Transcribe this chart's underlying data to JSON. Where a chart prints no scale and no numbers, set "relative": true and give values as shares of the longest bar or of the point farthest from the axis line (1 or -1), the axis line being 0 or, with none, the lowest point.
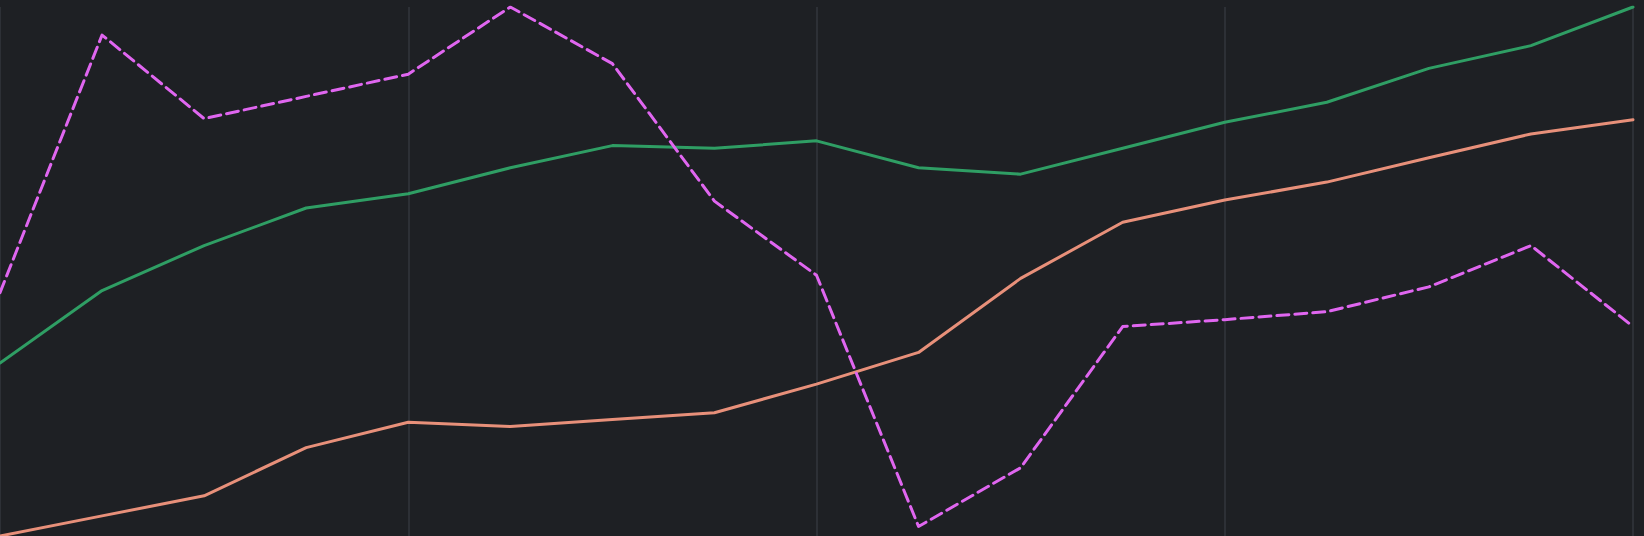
{
  "chart_data": {
    "type": "line",
    "relative": true,
    "grid": true,
    "categories": [
      null,
      null,
      null,
      null,
      null,
      null,
      null,
      null,
      null,
      null,
      null,
      null,
      null,
      null,
      null,
      null,
      null
    ],
    "series": [
      {
        "color": "#2f9e64",
        "line_style": "solid",
        "values": [
          0.327,
          0.464,
          0.549,
          0.62,
          0.647,
          0.696,
          0.738,
          0.733,
          0.747,
          0.696,
          0.684,
          0.733,
          0.782,
          0.82,
          0.884,
          0.927,
          1
        ]
      },
      {
        "color": "#e8907a",
        "line_style": "solid",
        "values": [
          0,
          0.038,
          0.076,
          0.167,
          0.215,
          0.207,
          0.22,
          0.233,
          0.287,
          0.347,
          0.487,
          0.593,
          0.635,
          0.669,
          0.715,
          0.76,
          0.787
        ]
      },
      {
        "color": "#e066f0",
        "line_style": "dashed",
        "values": [
          0.46,
          0.947,
          0.789,
          0.831,
          0.873,
          1,
          0.893,
          0.633,
          0.493,
          0.018,
          0.129,
          0.396,
          0.409,
          0.424,
          0.471,
          0.549,
          0.396
        ]
      }
    ]
  }
}
